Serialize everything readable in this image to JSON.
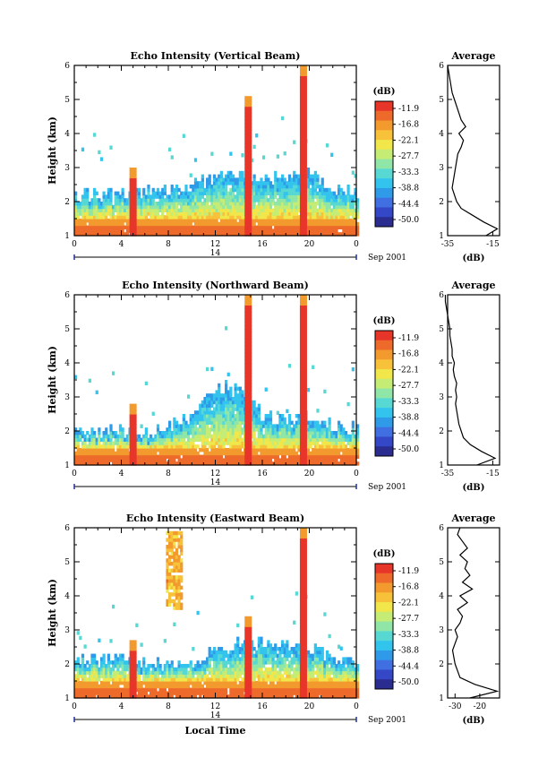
{
  "figure": {
    "x_axis_label": "Local Time",
    "x_ticks": [
      "0",
      "4",
      "8",
      "12",
      "16",
      "20",
      "0"
    ],
    "day_label": "14",
    "date_label": "Sep 2001",
    "y_axis_label": "Height (km)",
    "y_ticks": [
      "1",
      "2",
      "3",
      "4",
      "5",
      "6"
    ],
    "colorbar_unit": "(dB)",
    "colorbar_ticks": [
      "-11.9",
      "-16.8",
      "-22.1",
      "-27.7",
      "-33.3",
      "-38.8",
      "-44.4",
      "-50.0"
    ],
    "avg_title": "Average",
    "avg_unit": "(dB)"
  },
  "colors": {
    "scale": [
      "#2a2d8f",
      "#3447c7",
      "#3f6fe0",
      "#2f9be8",
      "#33c4ee",
      "#57d8d3",
      "#8fe6a6",
      "#c5ec75",
      "#f1e64a",
      "#f7c23a",
      "#f39a2e",
      "#ee6a2a",
      "#e8352a"
    ]
  },
  "chart_data": [
    {
      "type": "heatmap",
      "title": "Echo Intensity (Vertical Beam)",
      "xlabel": "",
      "ylabel": "Height (km)",
      "xlim": [
        0,
        24
      ],
      "ylim": [
        1,
        6
      ],
      "color_range_db": [
        -50.0,
        -11.9
      ],
      "cloud_top_km": [
        [
          0,
          2.2
        ],
        [
          2,
          2.1
        ],
        [
          4,
          2.2
        ],
        [
          6,
          2.2
        ],
        [
          8,
          2.3
        ],
        [
          10,
          2.4
        ],
        [
          12,
          2.7
        ],
        [
          14,
          2.8
        ],
        [
          15,
          2.6
        ],
        [
          16,
          2.7
        ],
        [
          18,
          2.6
        ],
        [
          20,
          2.8
        ],
        [
          22,
          2.3
        ],
        [
          24,
          2.2
        ]
      ],
      "showers": [
        {
          "time_h": 5.0,
          "top_km": 3.0
        },
        {
          "time_h": 14.8,
          "top_km": 5.0
        },
        {
          "time_h": 19.5,
          "top_km": 5.9
        }
      ],
      "avg_profile": {
        "xlim": [
          -35,
          -12
        ],
        "xticks": [
          "-35",
          "-15"
        ],
        "height_km": [
          1.0,
          1.2,
          1.4,
          1.6,
          1.8,
          2.0,
          2.2,
          2.4,
          2.6,
          2.8,
          3.0,
          3.2,
          3.4,
          3.6,
          3.8,
          4.0,
          4.2,
          4.4,
          4.6,
          4.8,
          5.0,
          5.2,
          5.4,
          5.6,
          5.8,
          6.0
        ],
        "db": [
          -18,
          -13,
          -19,
          -24,
          -29,
          -31,
          -32,
          -33,
          -32.5,
          -32,
          -31.5,
          -31,
          -30.5,
          -29,
          -28,
          -30,
          -27,
          -29,
          -30,
          -31,
          -32,
          -33,
          -33.5,
          -34,
          -34.5,
          -35
        ]
      }
    },
    {
      "type": "heatmap",
      "title": "Echo Intensity (Northward Beam)",
      "xlabel": "",
      "ylabel": "Height (km)",
      "xlim": [
        0,
        24
      ],
      "ylim": [
        1,
        6
      ],
      "color_range_db": [
        -50.0,
        -11.9
      ],
      "cloud_top_km": [
        [
          0,
          2.0
        ],
        [
          2,
          1.9
        ],
        [
          4,
          2.0
        ],
        [
          6,
          1.9
        ],
        [
          8,
          2.1
        ],
        [
          10,
          2.4
        ],
        [
          12,
          3.2
        ],
        [
          14,
          3.3
        ],
        [
          15,
          2.8
        ],
        [
          16,
          2.4
        ],
        [
          18,
          2.3
        ],
        [
          20,
          2.4
        ],
        [
          22,
          2.1
        ],
        [
          24,
          2.0
        ]
      ],
      "showers": [
        {
          "time_h": 5.0,
          "top_km": 2.8
        },
        {
          "time_h": 14.8,
          "top_km": 5.9
        },
        {
          "time_h": 19.5,
          "top_km": 5.9
        }
      ],
      "avg_profile": {
        "xlim": [
          -35,
          -12
        ],
        "xticks": [
          "-35",
          "-15"
        ],
        "height_km": [
          1.0,
          1.2,
          1.4,
          1.6,
          1.8,
          2.0,
          2.2,
          2.4,
          2.6,
          2.8,
          3.0,
          3.2,
          3.4,
          3.6,
          3.8,
          4.0,
          4.2,
          4.4,
          4.6,
          4.8,
          5.0,
          5.2,
          5.4,
          5.6,
          5.8,
          6.0
        ],
        "db": [
          -22,
          -14,
          -20,
          -25,
          -28,
          -29,
          -30,
          -30.5,
          -31,
          -31.5,
          -31,
          -31.5,
          -31,
          -32,
          -32.5,
          -32,
          -33,
          -33,
          -33.5,
          -34,
          -34,
          -34.5,
          -35,
          -35.5,
          -36,
          -36
        ]
      }
    },
    {
      "type": "heatmap",
      "title": "Echo Intensity (Eastward Beam)",
      "xlabel": "Local Time",
      "ylabel": "Height (km)",
      "xlim": [
        0,
        24
      ],
      "ylim": [
        1,
        6
      ],
      "color_range_db": [
        -50.0,
        -11.9
      ],
      "cloud_top_km": [
        [
          0,
          2.1
        ],
        [
          2,
          2.1
        ],
        [
          4,
          2.1
        ],
        [
          6,
          1.9
        ],
        [
          8,
          2.0
        ],
        [
          10,
          2.1
        ],
        [
          12,
          2.3
        ],
        [
          14,
          2.6
        ],
        [
          15,
          2.5
        ],
        [
          16,
          2.6
        ],
        [
          18,
          2.5
        ],
        [
          20,
          2.4
        ],
        [
          22,
          2.1
        ],
        [
          24,
          2.0
        ]
      ],
      "showers": [
        {
          "time_h": 5.0,
          "top_km": 2.7
        },
        {
          "time_h": 14.8,
          "top_km": 3.4
        },
        {
          "time_h": 19.5,
          "top_km": 5.9
        }
      ],
      "elevated_layer": {
        "time_start_h": 7.8,
        "time_end_h": 9.0,
        "bottom_km": 3.6,
        "top_km": 5.8
      },
      "avg_profile": {
        "xlim": [
          -33,
          -12
        ],
        "xticks": [
          "-30",
          "-20"
        ],
        "height_km": [
          1.0,
          1.2,
          1.4,
          1.6,
          1.8,
          2.0,
          2.2,
          2.4,
          2.6,
          2.8,
          3.0,
          3.2,
          3.4,
          3.6,
          3.8,
          4.0,
          4.2,
          4.4,
          4.6,
          4.8,
          5.0,
          5.2,
          5.4,
          5.6,
          5.8,
          6.0
        ],
        "db": [
          -24,
          -13,
          -22,
          -28,
          -29,
          -30,
          -30.5,
          -31,
          -30,
          -29,
          -30,
          -28,
          -27,
          -29,
          -25,
          -28,
          -23,
          -27,
          -24,
          -26,
          -25,
          -28,
          -25,
          -27,
          -29,
          -28
        ]
      }
    }
  ]
}
